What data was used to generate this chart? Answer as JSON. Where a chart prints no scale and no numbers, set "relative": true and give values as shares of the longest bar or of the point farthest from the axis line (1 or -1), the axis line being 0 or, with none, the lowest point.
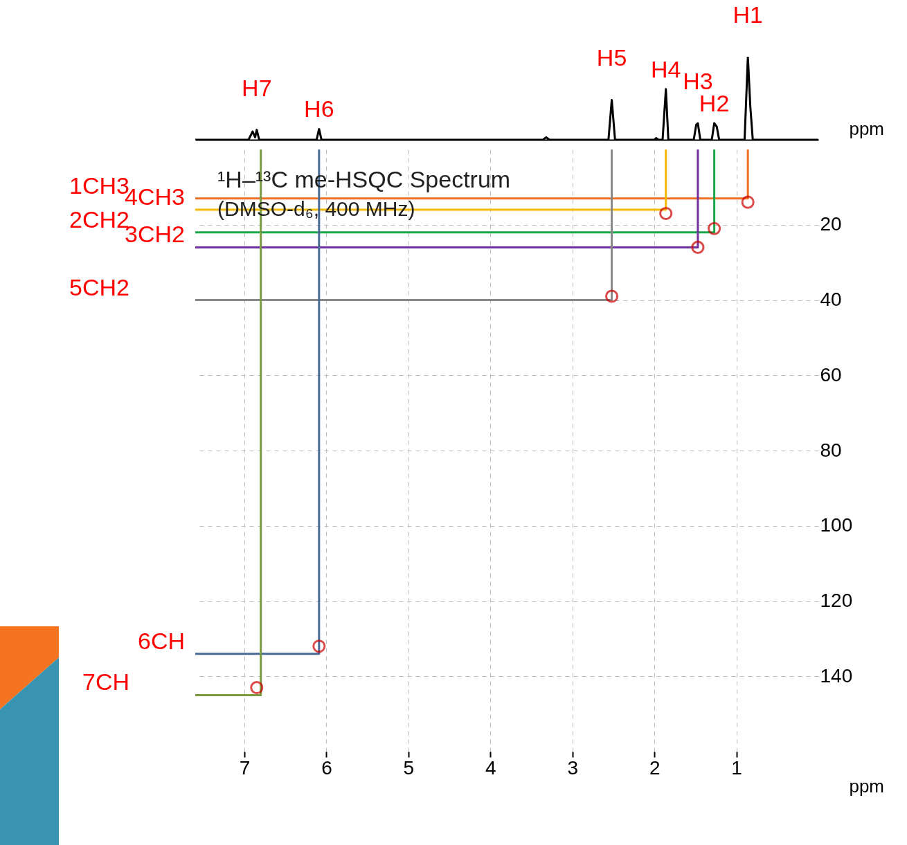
{
  "chart_data": [
    {
      "type": "line",
      "relative": true,
      "xlim": [
        7.6,
        0
      ],
      "xticks": [
        7,
        6,
        5,
        4,
        3,
        2,
        1
      ],
      "xlabel": "ppm",
      "tick_labels": false,
      "series": [
        {
          "color": "#000000",
          "x": [
            7.6,
            6.95,
            6.9,
            6.87,
            6.85,
            6.82,
            6.12,
            6.09,
            6.06,
            3.36,
            3.32,
            3.28,
            2.56,
            2.52,
            2.48,
            2.0,
            1.98,
            1.95,
            1.9,
            1.86,
            1.83,
            1.52,
            1.49,
            1.47,
            1.44,
            1.3,
            1.27,
            1.24,
            1.21,
            0.9,
            0.86,
            0.83,
            0.8,
            0
          ],
          "values": [
            0,
            0,
            0.1,
            0.03,
            0.12,
            0,
            0,
            0.13,
            0,
            0,
            0.03,
            0,
            0,
            0.48,
            0,
            0,
            0.02,
            0,
            0,
            0.61,
            0,
            0,
            0.18,
            0.2,
            0,
            0,
            0.2,
            0.16,
            0,
            0,
            1.0,
            0.4,
            0,
            0
          ]
        }
      ],
      "annotations": [
        {
          "text": "H1",
          "x": 0.86,
          "y": 1.0
        },
        {
          "text": "H4",
          "x": 1.86,
          "y": 0.61
        },
        {
          "text": "H3",
          "x": 1.47,
          "y": 0.2
        },
        {
          "text": "H2",
          "x": 1.27,
          "y": 0.2
        },
        {
          "text": "H5",
          "x": 2.52,
          "y": 0.48
        },
        {
          "text": "H6",
          "x": 6.09,
          "y": 0.13
        },
        {
          "text": "H7",
          "x": 6.85,
          "y": 0.12
        }
      ]
    },
    {
      "type": "scatter",
      "title": "¹H–¹³C me-HSQC Spectrum",
      "subtitle": "(DMSO-d₆, 400 MHz)",
      "xlabel": "ppm",
      "xlim": [
        7.6,
        0
      ],
      "ylim": [
        160,
        0
      ],
      "xticks": [
        7,
        6,
        5,
        4,
        3,
        2,
        1
      ],
      "yticks": [
        20,
        40,
        60,
        80,
        100,
        120,
        140
      ],
      "grid": true,
      "series": [
        {
          "type": "line",
          "color": "#f07020",
          "x": [
            0.86,
            0.86,
            7.6
          ],
          "values": [
            0,
            13,
            13
          ]
        },
        {
          "type": "line",
          "color": "#f5b800",
          "x": [
            1.86,
            1.86,
            7.6
          ],
          "values": [
            0,
            16,
            16
          ]
        },
        {
          "type": "line",
          "color": "#1aa64a",
          "x": [
            1.27,
            1.27,
            7.6
          ],
          "values": [
            0,
            22,
            22
          ]
        },
        {
          "type": "line",
          "color": "#7030a0",
          "x": [
            1.47,
            1.47,
            7.6
          ],
          "values": [
            0,
            26,
            26
          ]
        },
        {
          "type": "line",
          "color": "#888888",
          "x": [
            2.52,
            2.52,
            7.6
          ],
          "values": [
            0,
            40,
            40
          ]
        },
        {
          "type": "line",
          "color": "#4a6a96",
          "x": [
            6.09,
            6.09,
            7.6
          ],
          "values": [
            0,
            134,
            134
          ]
        },
        {
          "type": "line",
          "color": "#7a9a40",
          "x": [
            6.8,
            6.8,
            7.6
          ],
          "values": [
            0,
            145,
            145
          ]
        },
        {
          "color": "#cc0000",
          "marker": "circle",
          "x": [
            0.86,
            1.86,
            1.27,
            1.47,
            2.52,
            6.09,
            6.85
          ],
          "values": [
            14,
            17,
            21,
            26,
            39,
            132,
            143
          ]
        }
      ],
      "annotations": [
        "1CH3",
        "4CH3",
        "2CH2",
        "3CH2",
        "5CH2",
        "6CH",
        "7CH"
      ]
    }
  ]
}
